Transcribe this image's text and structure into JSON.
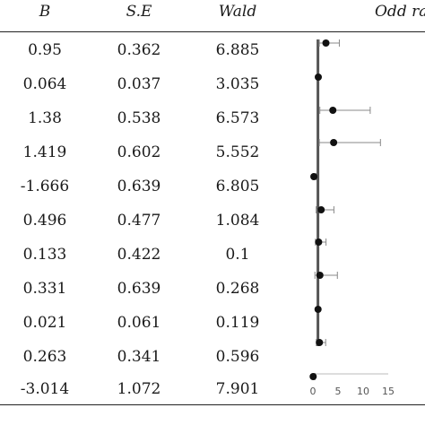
{
  "table": {
    "headers": {
      "b": "B",
      "se": "S.E",
      "wald": "Wald",
      "or": "Odd ra"
    },
    "rows": [
      {
        "b": "0.95",
        "se": "0.362",
        "wald": "6.885"
      },
      {
        "b": "0.064",
        "se": "0.037",
        "wald": "3.035"
      },
      {
        "b": "1.38",
        "se": "0.538",
        "wald": "6.573"
      },
      {
        "b": "1.419",
        "se": "0.602",
        "wald": "5.552"
      },
      {
        "b": "-1.666",
        "se": "0.639",
        "wald": "6.805"
      },
      {
        "b": "0.496",
        "se": "0.477",
        "wald": "1.084"
      },
      {
        "b": "0.133",
        "se": "0.422",
        "wald": "0.1"
      },
      {
        "b": "0.331",
        "se": "0.639",
        "wald": "0.268"
      },
      {
        "b": "0.021",
        "se": "0.061",
        "wald": "0.119"
      },
      {
        "b": "0.263",
        "se": "0.341",
        "wald": "0.596"
      },
      {
        "b": "-3.014",
        "se": "1.072",
        "wald": "7.901"
      }
    ]
  },
  "chart_data": {
    "type": "scatter",
    "orientation": "horizontal-forest",
    "x_ticks": [
      "0",
      "5",
      "10",
      "15"
    ],
    "xlim": [
      0,
      15
    ],
    "reference_line": 1,
    "points": [
      {
        "or": 2.59,
        "lo": 1.27,
        "hi": 5.26
      },
      {
        "or": 1.07,
        "lo": 0.99,
        "hi": 1.15
      },
      {
        "or": 3.97,
        "lo": 1.38,
        "hi": 11.41
      },
      {
        "or": 4.13,
        "lo": 1.27,
        "hi": 13.45
      },
      {
        "or": 0.19,
        "lo": 0.05,
        "hi": 0.66
      },
      {
        "or": 1.64,
        "lo": 0.65,
        "hi": 4.18
      },
      {
        "or": 1.14,
        "lo": 0.5,
        "hi": 2.61
      },
      {
        "or": 1.39,
        "lo": 0.4,
        "hi": 4.87
      },
      {
        "or": 1.02,
        "lo": 0.91,
        "hi": 1.15
      },
      {
        "or": 1.3,
        "lo": 0.67,
        "hi": 2.54
      },
      {
        "or": 0.05,
        "lo": 0.01,
        "hi": 0.4
      }
    ]
  }
}
